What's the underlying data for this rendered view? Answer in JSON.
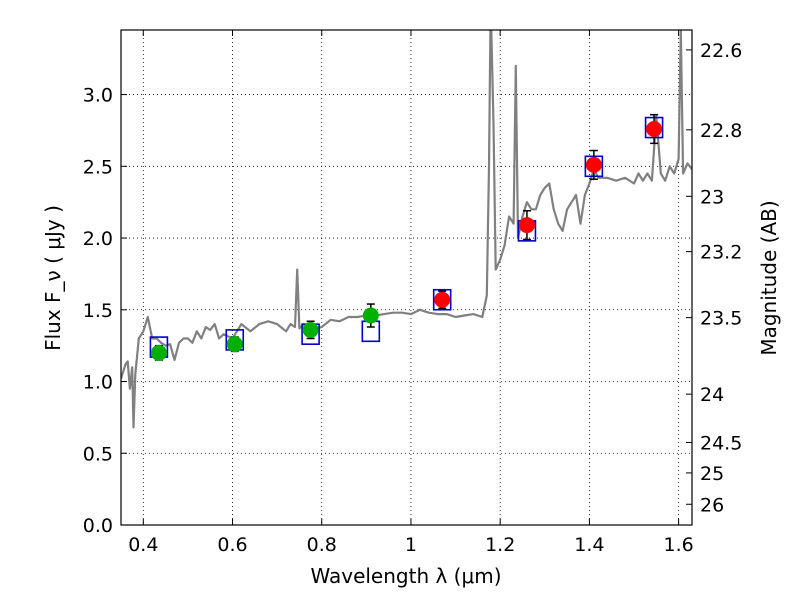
{
  "chart_data": {
    "type": "scatter",
    "xlabel": "Wavelength  λ (μm)",
    "ylabel": "Flux  F_ν  ( μJy )",
    "y2label": "Magnitude (AB)",
    "xlim": [
      0.35,
      1.63
    ],
    "ylim": [
      0.0,
      3.45
    ],
    "grid": true,
    "x_ticks": [
      0.4,
      0.6,
      0.8,
      1.0,
      1.2,
      1.4,
      1.6
    ],
    "x_tick_labels": [
      "0.4",
      "0.6",
      "0.8",
      "1",
      "1.2",
      "1.4",
      "1.6"
    ],
    "y_ticks": [
      0.0,
      0.5,
      1.0,
      1.5,
      2.0,
      2.5,
      3.0
    ],
    "y_tick_labels": [
      "0.0",
      "0.5",
      "1.0",
      "1.5",
      "2.0",
      "2.5",
      "3.0"
    ],
    "y2_ticks": [
      22.6,
      22.8,
      23,
      23.2,
      23.5,
      24,
      24.5,
      25,
      26
    ],
    "y2_tick_labels": [
      "22.6",
      "22.8",
      "23",
      "23.2",
      "23.5",
      "24",
      "24.5",
      "25",
      "26"
    ],
    "colors": {
      "model": "#808080",
      "optical": "#00b000",
      "nir": "#ff0000",
      "box": "#0000cc",
      "errorbar": "#000000"
    },
    "model_spectrum": {
      "x": [
        0.35,
        0.36,
        0.365,
        0.37,
        0.375,
        0.378,
        0.382,
        0.39,
        0.4,
        0.41,
        0.42,
        0.43,
        0.44,
        0.45,
        0.46,
        0.47,
        0.48,
        0.49,
        0.5,
        0.51,
        0.52,
        0.53,
        0.54,
        0.55,
        0.56,
        0.57,
        0.58,
        0.6,
        0.62,
        0.64,
        0.66,
        0.68,
        0.7,
        0.72,
        0.73,
        0.74,
        0.745,
        0.75,
        0.76,
        0.78,
        0.8,
        0.82,
        0.84,
        0.86,
        0.88,
        0.9,
        0.92,
        0.94,
        0.96,
        0.98,
        1.0,
        1.02,
        1.04,
        1.06,
        1.08,
        1.1,
        1.12,
        1.14,
        1.16,
        1.17,
        1.175,
        1.178,
        1.18,
        1.185,
        1.19,
        1.2,
        1.21,
        1.22,
        1.23,
        1.235,
        1.24,
        1.25,
        1.26,
        1.27,
        1.28,
        1.29,
        1.3,
        1.31,
        1.32,
        1.33,
        1.34,
        1.35,
        1.36,
        1.37,
        1.38,
        1.39,
        1.4,
        1.41,
        1.42,
        1.44,
        1.46,
        1.48,
        1.5,
        1.51,
        1.52,
        1.53,
        1.54,
        1.55,
        1.56,
        1.57,
        1.58,
        1.59,
        1.6,
        1.605,
        1.61,
        1.62,
        1.63
      ],
      "y": [
        1.02,
        1.12,
        1.14,
        0.95,
        1.1,
        0.68,
        1.05,
        1.3,
        1.35,
        1.45,
        1.3,
        1.3,
        1.27,
        1.25,
        1.26,
        1.15,
        1.27,
        1.3,
        1.3,
        1.27,
        1.35,
        1.3,
        1.38,
        1.36,
        1.4,
        1.3,
        1.33,
        1.3,
        1.4,
        1.35,
        1.4,
        1.42,
        1.4,
        1.35,
        1.4,
        1.38,
        1.78,
        1.37,
        1.4,
        1.36,
        1.38,
        1.43,
        1.42,
        1.45,
        1.45,
        1.46,
        1.46,
        1.47,
        1.48,
        1.48,
        1.47,
        1.5,
        1.48,
        1.47,
        1.47,
        1.45,
        1.46,
        1.47,
        1.45,
        1.6,
        2.5,
        3.45,
        3.45,
        2.8,
        1.78,
        1.85,
        1.95,
        2.15,
        2.1,
        3.2,
        2.0,
        2.15,
        2.25,
        2.2,
        2.2,
        2.3,
        2.35,
        2.38,
        2.2,
        2.1,
        2.05,
        2.2,
        2.25,
        2.3,
        2.1,
        2.3,
        2.38,
        2.48,
        2.42,
        2.42,
        2.4,
        2.42,
        2.38,
        2.45,
        2.4,
        2.45,
        2.4,
        2.85,
        2.45,
        2.4,
        2.5,
        2.45,
        2.55,
        3.45,
        2.45,
        2.52,
        2.48
      ]
    },
    "model_bands": {
      "x": [
        0.435,
        0.605,
        0.775,
        0.91,
        1.07,
        1.26,
        1.41,
        1.545
      ],
      "y": [
        1.24,
        1.29,
        1.33,
        1.35,
        1.57,
        2.05,
        2.5,
        2.77
      ]
    },
    "observed": {
      "x": [
        0.435,
        0.605,
        0.775,
        0.91,
        1.07,
        1.26,
        1.41,
        1.545
      ],
      "y": [
        1.2,
        1.26,
        1.36,
        1.46,
        1.57,
        2.09,
        2.51,
        2.76
      ],
      "err": [
        0.05,
        0.05,
        0.06,
        0.08,
        0.06,
        0.1,
        0.1,
        0.1
      ],
      "group": [
        "optical",
        "optical",
        "optical",
        "optical",
        "nir",
        "nir",
        "nir",
        "nir"
      ]
    }
  }
}
